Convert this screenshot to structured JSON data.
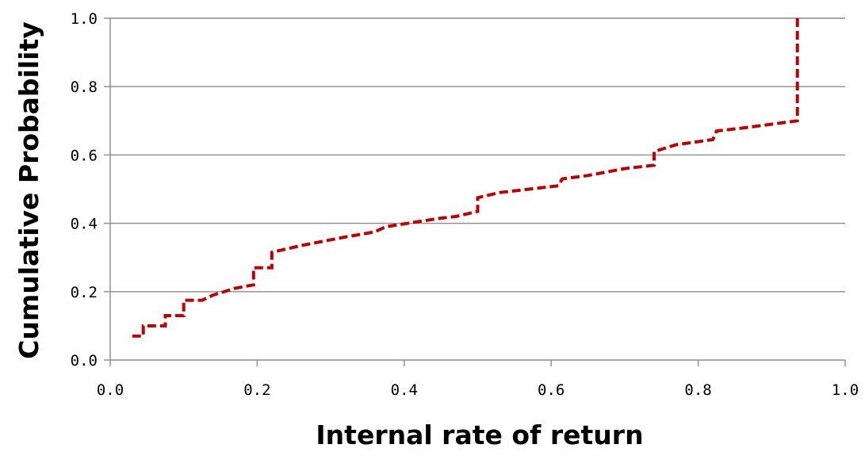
{
  "chart_data": {
    "type": "line",
    "title": "",
    "xlabel": "Internal rate of return",
    "ylabel": "Cumulative Probability",
    "xlim": [
      0,
      1
    ],
    "ylim": [
      0,
      1
    ],
    "x_ticks": [
      "0.0",
      "0.2",
      "0.4",
      "0.6",
      "0.8",
      "1.0"
    ],
    "y_ticks": [
      "0.0",
      "0.2",
      "0.4",
      "0.6",
      "0.8",
      "1.0"
    ],
    "grid": "horizontal",
    "legend": "none",
    "series": [
      {
        "style": "dashed-step",
        "color": "#c00000",
        "points": [
          [
            0.03,
            0.07
          ],
          [
            0.045,
            0.07
          ],
          [
            0.045,
            0.1
          ],
          [
            0.075,
            0.1
          ],
          [
            0.075,
            0.13
          ],
          [
            0.1,
            0.13
          ],
          [
            0.1,
            0.175
          ],
          [
            0.125,
            0.175
          ],
          [
            0.14,
            0.19
          ],
          [
            0.17,
            0.21
          ],
          [
            0.195,
            0.22
          ],
          [
            0.195,
            0.27
          ],
          [
            0.22,
            0.27
          ],
          [
            0.22,
            0.315
          ],
          [
            0.26,
            0.335
          ],
          [
            0.32,
            0.36
          ],
          [
            0.36,
            0.375
          ],
          [
            0.375,
            0.39
          ],
          [
            0.42,
            0.405
          ],
          [
            0.45,
            0.415
          ],
          [
            0.47,
            0.42
          ],
          [
            0.5,
            0.435
          ],
          [
            0.5,
            0.475
          ],
          [
            0.53,
            0.49
          ],
          [
            0.57,
            0.5
          ],
          [
            0.61,
            0.51
          ],
          [
            0.615,
            0.53
          ],
          [
            0.65,
            0.54
          ],
          [
            0.7,
            0.56
          ],
          [
            0.74,
            0.57
          ],
          [
            0.74,
            0.61
          ],
          [
            0.77,
            0.63
          ],
          [
            0.82,
            0.645
          ],
          [
            0.825,
            0.67
          ],
          [
            0.865,
            0.68
          ],
          [
            0.9,
            0.69
          ],
          [
            0.935,
            0.7
          ],
          [
            0.935,
            1.0
          ]
        ]
      }
    ]
  }
}
